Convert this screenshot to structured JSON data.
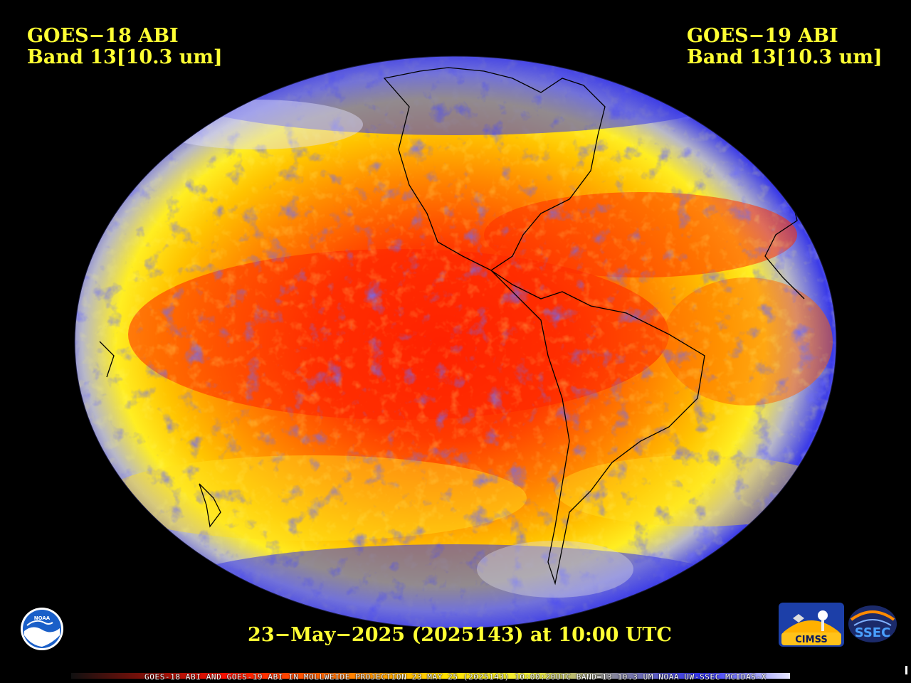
{
  "titles": {
    "left_line1": "GOES−18 ABI",
    "left_line2": "Band 13[10.3 um]",
    "right_line1": "GOES−19 ABI",
    "right_line2": "Band 13[10.3 um]"
  },
  "timestamp": "23−May−2025 (2025143) at 10:00 UTC",
  "colorbar_label": "GOES-18 ABI AND GOES-19 ABI IN MOLLWEIDE PROJECTION 23 MAY 25 (2025143) 10:00:20UTC BAND=13 10.3 UM NOAA UW-SSEC MCIDAS-X",
  "logos": {
    "noaa": "NOAA",
    "cimss": "CIMSS",
    "ssec": "SSEC"
  },
  "colors": {
    "title_text": "#ffff33",
    "background": "#000000",
    "warm_core": "#ff2a00",
    "warm_mid": "#ff8c00",
    "warm_edge": "#ffd21e",
    "cloud_blue": "#2a2ae6",
    "cloud_gray": "#a0a0a0",
    "cloud_white": "#f2f2f2"
  },
  "colorbar_stops": [
    "#101010",
    "#ff1000",
    "#ff7a00",
    "#ffe000",
    "#f0f040",
    "#909090",
    "#3030f0",
    "#e8e8ff"
  ],
  "projection": "Mollweide"
}
